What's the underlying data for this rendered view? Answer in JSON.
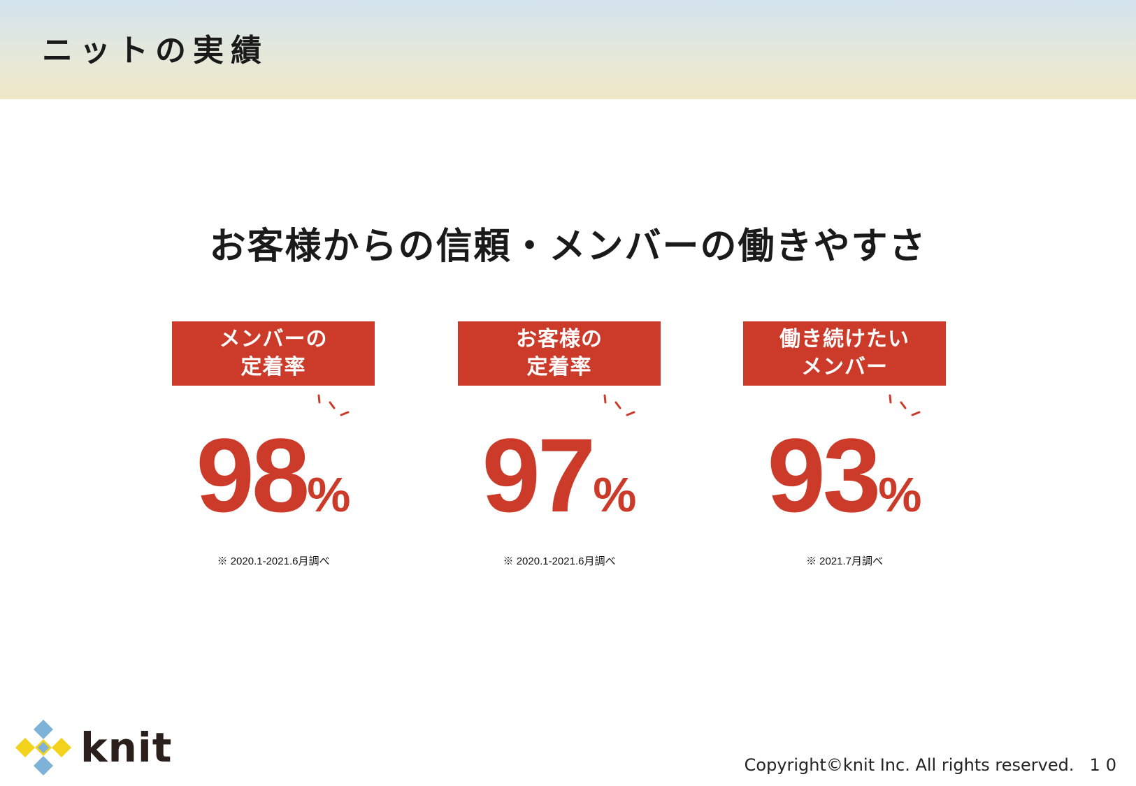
{
  "header": {
    "title": "ニットの実績"
  },
  "headline": "お客様からの信頼・メンバーの働きやすさ",
  "stats": [
    {
      "label": "メンバーの\n定着率",
      "value": "98",
      "unit": "%",
      "note": "※ 2020.1-2021.6月調べ"
    },
    {
      "label": "お客様の\n定着率",
      "value": "97",
      "unit": "%",
      "note": "※ 2020.1-2021.6月調べ"
    },
    {
      "label": "働き続けたい\nメンバー",
      "value": "93",
      "unit": "%",
      "note": "※ 2021.7月調べ"
    }
  ],
  "brand": {
    "name": "knit",
    "colors": {
      "accent": "#cc3a2a",
      "logo_yellow": "#f2d21b",
      "logo_blue": "#7fb2d9"
    }
  },
  "footer": {
    "copyright": "Copyright©knit Inc. All rights reserved.",
    "page_number": "10"
  }
}
